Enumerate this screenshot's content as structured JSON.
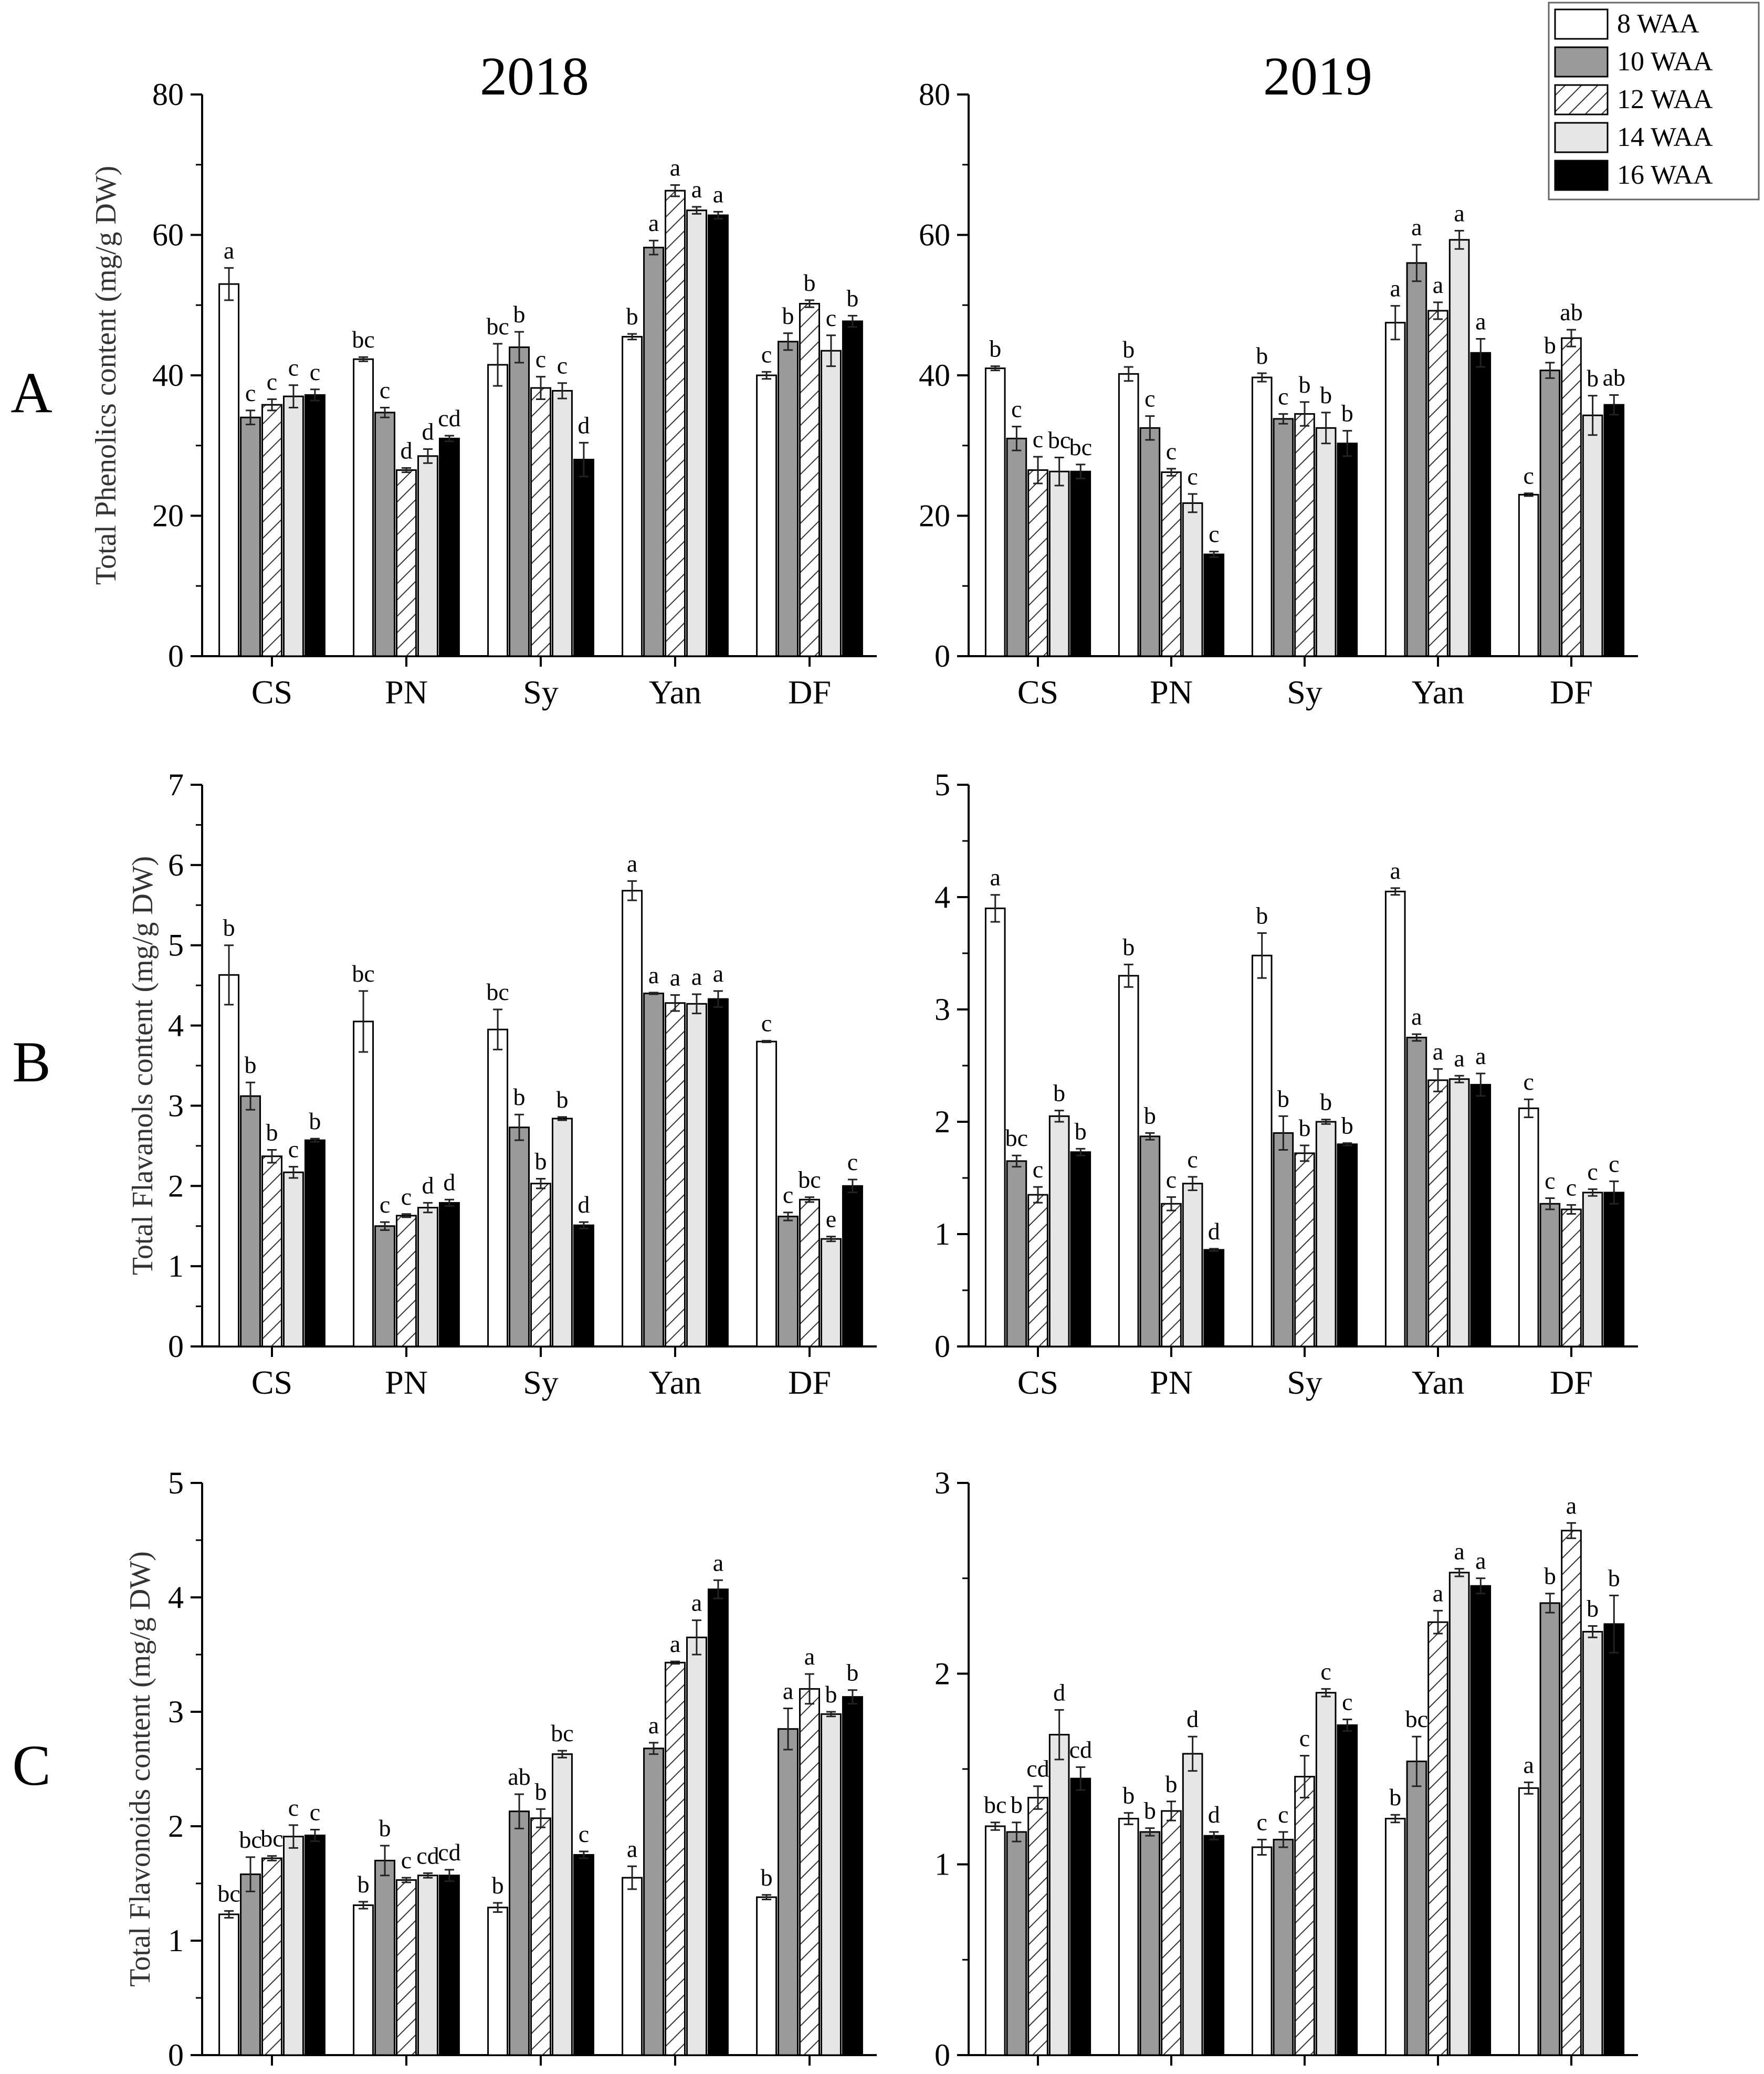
{
  "figure": {
    "year_titles": [
      "2018",
      "2019"
    ],
    "panel_letters": [
      "A",
      "B",
      "C"
    ],
    "legend": [
      {
        "label": "8 WAA",
        "pattern": "white"
      },
      {
        "label": "10 WAA",
        "pattern": "darkgray"
      },
      {
        "label": "12 WAA",
        "pattern": "hatch"
      },
      {
        "label": "14 WAA",
        "pattern": "lightgray"
      },
      {
        "label": "16 WAA",
        "pattern": "black"
      }
    ],
    "colors": {
      "white": "#ffffff",
      "darkgray": "#9a9a9a",
      "lightgray": "#e6e6e6",
      "black": "#000000",
      "hatch_stroke": "#333333"
    }
  },
  "chart_data": [
    {
      "type": "bar",
      "panel": "A",
      "year": "2018",
      "ylabel": "Total Phenolics content (mg/g DW)",
      "ylim": [
        0,
        80
      ],
      "yticks": [
        0,
        20,
        40,
        60,
        80
      ],
      "categories": [
        "CS",
        "PN",
        "Sy",
        "Yan",
        "DF"
      ],
      "series": [
        {
          "name": "8 WAA",
          "values": [
            53.0,
            42.3,
            41.5,
            45.5,
            40.0
          ],
          "errors": [
            2.3,
            0.3,
            3.0,
            0.4,
            0.5
          ],
          "letters": [
            "a",
            "bc",
            "bc",
            "b",
            "c"
          ]
        },
        {
          "name": "10 WAA",
          "values": [
            34.0,
            34.7,
            44.0,
            58.2,
            44.8
          ],
          "errors": [
            1.0,
            0.7,
            2.2,
            1.0,
            1.2
          ],
          "letters": [
            "c",
            "c",
            "b",
            "a",
            "b"
          ]
        },
        {
          "name": "12 WAA",
          "values": [
            35.8,
            26.5,
            38.2,
            66.3,
            50.2
          ],
          "errors": [
            0.8,
            0.3,
            1.6,
            0.8,
            0.5
          ],
          "letters": [
            "c",
            "d",
            "c",
            "a",
            "b"
          ]
        },
        {
          "name": "14 WAA",
          "values": [
            37.0,
            28.5,
            37.8,
            63.5,
            43.5
          ],
          "errors": [
            1.6,
            1.0,
            1.1,
            0.5,
            2.2
          ],
          "letters": [
            "c",
            "d",
            "c",
            "a",
            "c"
          ]
        },
        {
          "name": "16 WAA",
          "values": [
            37.2,
            31.0,
            28.0,
            62.8,
            47.7
          ],
          "errors": [
            0.8,
            0.4,
            2.4,
            0.5,
            0.8
          ],
          "letters": [
            "c",
            "cd",
            "d",
            "a",
            "b"
          ]
        }
      ]
    },
    {
      "type": "bar",
      "panel": "A",
      "year": "2019",
      "ylabel": "",
      "ylim": [
        0,
        80
      ],
      "yticks": [
        0,
        20,
        40,
        60,
        80
      ],
      "categories": [
        "CS",
        "PN",
        "Sy",
        "Yan",
        "DF"
      ],
      "series": [
        {
          "name": "8 WAA",
          "values": [
            41.0,
            40.2,
            39.7,
            47.5,
            23.0
          ],
          "errors": [
            0.3,
            1.0,
            0.6,
            2.4,
            0.2
          ],
          "letters": [
            "b",
            "b",
            "b",
            "a",
            "c"
          ]
        },
        {
          "name": "10 WAA",
          "values": [
            31.0,
            32.5,
            33.8,
            56.0,
            40.7
          ],
          "errors": [
            1.7,
            1.7,
            0.7,
            2.6,
            1.1
          ],
          "letters": [
            "c",
            "c",
            "c",
            "a",
            "b"
          ]
        },
        {
          "name": "12 WAA",
          "values": [
            26.5,
            26.2,
            34.5,
            49.2,
            45.3
          ],
          "errors": [
            1.9,
            0.5,
            1.7,
            1.2,
            1.2
          ],
          "letters": [
            "c",
            "c",
            "b",
            "a",
            "ab"
          ]
        },
        {
          "name": "14 WAA",
          "values": [
            26.3,
            21.8,
            32.5,
            59.3,
            34.3
          ],
          "errors": [
            2.0,
            1.3,
            2.2,
            1.3,
            2.8
          ],
          "letters": [
            "bc",
            "c",
            "b",
            "a",
            "b"
          ]
        },
        {
          "name": "16 WAA",
          "values": [
            26.3,
            14.5,
            30.3,
            43.2,
            35.8
          ],
          "errors": [
            1.0,
            0.4,
            1.8,
            2.0,
            1.4
          ],
          "letters": [
            "bc",
            "c",
            "b",
            "a",
            "ab"
          ]
        }
      ]
    },
    {
      "type": "bar",
      "panel": "B",
      "year": "2018",
      "ylabel": "Total Flavanols content (mg/g DW)",
      "ylim": [
        0,
        7
      ],
      "yticks": [
        0,
        1,
        2,
        3,
        4,
        5,
        6,
        7
      ],
      "categories": [
        "CS",
        "PN",
        "Sy",
        "Yan",
        "DF"
      ],
      "series": [
        {
          "name": "8 WAA",
          "values": [
            4.63,
            4.05,
            3.95,
            5.68,
            3.8
          ],
          "errors": [
            0.37,
            0.38,
            0.25,
            0.12,
            0.01
          ],
          "letters": [
            "b",
            "bc",
            "bc",
            "a",
            "c"
          ]
        },
        {
          "name": "10 WAA",
          "values": [
            3.12,
            1.5,
            2.73,
            4.4,
            1.62
          ],
          "errors": [
            0.17,
            0.05,
            0.16,
            0.01,
            0.05
          ],
          "letters": [
            "b",
            "c",
            "b",
            "a",
            "c"
          ]
        },
        {
          "name": "12 WAA",
          "values": [
            2.37,
            1.63,
            2.03,
            4.28,
            1.83
          ],
          "errors": [
            0.08,
            0.02,
            0.06,
            0.1,
            0.03
          ],
          "letters": [
            "b",
            "c",
            "b",
            "a",
            "bc"
          ]
        },
        {
          "name": "14 WAA",
          "values": [
            2.17,
            1.73,
            2.84,
            4.27,
            1.34
          ],
          "errors": [
            0.07,
            0.06,
            0.02,
            0.12,
            0.03
          ],
          "letters": [
            "c",
            "d",
            "b",
            "a",
            "e"
          ]
        },
        {
          "name": "16 WAA",
          "values": [
            2.57,
            1.79,
            1.51,
            4.33,
            2.0
          ],
          "errors": [
            0.02,
            0.04,
            0.04,
            0.1,
            0.08
          ],
          "letters": [
            "b",
            "d",
            "d",
            "a",
            "c"
          ]
        }
      ]
    },
    {
      "type": "bar",
      "panel": "B",
      "year": "2019",
      "ylabel": "",
      "ylim": [
        0,
        5
      ],
      "yticks": [
        0,
        1,
        2,
        3,
        4,
        5
      ],
      "categories": [
        "CS",
        "PN",
        "Sy",
        "Yan",
        "DF"
      ],
      "series": [
        {
          "name": "8 WAA",
          "values": [
            3.9,
            3.3,
            3.48,
            4.05,
            2.12
          ],
          "errors": [
            0.12,
            0.1,
            0.2,
            0.03,
            0.08
          ],
          "letters": [
            "a",
            "b",
            "b",
            "a",
            "c"
          ]
        },
        {
          "name": "10 WAA",
          "values": [
            1.65,
            1.87,
            1.9,
            2.75,
            1.27
          ],
          "errors": [
            0.05,
            0.03,
            0.15,
            0.03,
            0.05
          ],
          "letters": [
            "bc",
            "b",
            "b",
            "a",
            "c"
          ]
        },
        {
          "name": "12 WAA",
          "values": [
            1.35,
            1.27,
            1.72,
            2.37,
            1.22
          ],
          "errors": [
            0.07,
            0.06,
            0.07,
            0.1,
            0.04
          ],
          "letters": [
            "c",
            "c",
            "b",
            "a",
            "c"
          ]
        },
        {
          "name": "14 WAA",
          "values": [
            2.05,
            1.45,
            2.0,
            2.38,
            1.37
          ],
          "errors": [
            0.05,
            0.06,
            0.02,
            0.03,
            0.03
          ],
          "letters": [
            "b",
            "c",
            "b",
            "a",
            "c"
          ]
        },
        {
          "name": "16 WAA",
          "values": [
            1.73,
            0.86,
            1.8,
            2.33,
            1.37
          ],
          "errors": [
            0.03,
            0.01,
            0.01,
            0.1,
            0.1
          ],
          "letters": [
            "b",
            "d",
            "b",
            "a",
            "c"
          ]
        }
      ]
    },
    {
      "type": "bar",
      "panel": "C",
      "year": "2018",
      "ylabel": "Total Flavonoids content (mg/g DW)",
      "ylim": [
        0,
        5
      ],
      "yticks": [
        0,
        1,
        2,
        3,
        4,
        5
      ],
      "categories": [
        "CS",
        "PN",
        "Sy",
        "Yan",
        "DF"
      ],
      "series": [
        {
          "name": "8 WAA",
          "values": [
            1.23,
            1.31,
            1.29,
            1.55,
            1.38
          ],
          "errors": [
            0.03,
            0.03,
            0.04,
            0.1,
            0.02
          ],
          "letters": [
            "bc",
            "b",
            "b",
            "a",
            "b"
          ]
        },
        {
          "name": "10 WAA",
          "values": [
            1.58,
            1.7,
            2.13,
            2.68,
            2.85
          ],
          "errors": [
            0.15,
            0.13,
            0.15,
            0.05,
            0.18
          ],
          "letters": [
            "bc",
            "b",
            "ab",
            "a",
            "a"
          ]
        },
        {
          "name": "12 WAA",
          "values": [
            1.72,
            1.53,
            2.07,
            3.43,
            3.2
          ],
          "errors": [
            0.02,
            0.02,
            0.08,
            0.01,
            0.13
          ],
          "letters": [
            "bc",
            "c",
            "b",
            "a",
            "a"
          ]
        },
        {
          "name": "14 WAA",
          "values": [
            1.91,
            1.57,
            2.63,
            3.65,
            2.98
          ],
          "errors": [
            0.1,
            0.02,
            0.03,
            0.15,
            0.02
          ],
          "letters": [
            "c",
            "cd",
            "bc",
            "a",
            "b"
          ]
        },
        {
          "name": "16 WAA",
          "values": [
            1.92,
            1.57,
            1.75,
            4.07,
            3.13
          ],
          "errors": [
            0.05,
            0.05,
            0.03,
            0.08,
            0.06
          ],
          "letters": [
            "c",
            "cd",
            "c",
            "a",
            "b"
          ]
        }
      ]
    },
    {
      "type": "bar",
      "panel": "C",
      "year": "2019",
      "ylabel": "",
      "ylim": [
        0,
        3
      ],
      "yticks": [
        0,
        1,
        2,
        3
      ],
      "categories": [
        "CS",
        "PN",
        "Sy",
        "Yan",
        "DF"
      ],
      "series": [
        {
          "name": "8 WAA",
          "values": [
            1.2,
            1.24,
            1.09,
            1.24,
            1.4
          ],
          "errors": [
            0.02,
            0.03,
            0.04,
            0.02,
            0.03
          ],
          "letters": [
            "bc",
            "b",
            "c",
            "b",
            "a"
          ]
        },
        {
          "name": "10 WAA",
          "values": [
            1.17,
            1.17,
            1.13,
            1.54,
            2.37
          ],
          "errors": [
            0.05,
            0.02,
            0.04,
            0.13,
            0.05
          ],
          "letters": [
            "b",
            "b",
            "c",
            "bc",
            "b"
          ]
        },
        {
          "name": "12 WAA",
          "values": [
            1.35,
            1.28,
            1.46,
            2.27,
            2.75
          ],
          "errors": [
            0.06,
            0.05,
            0.11,
            0.06,
            0.04
          ],
          "letters": [
            "cd",
            "b",
            "c",
            "a",
            "a"
          ]
        },
        {
          "name": "14 WAA",
          "values": [
            1.68,
            1.58,
            1.9,
            2.53,
            2.22
          ],
          "errors": [
            0.13,
            0.09,
            0.02,
            0.02,
            0.03
          ],
          "letters": [
            "d",
            "d",
            "c",
            "a",
            "b"
          ]
        },
        {
          "name": "16 WAA",
          "values": [
            1.45,
            1.15,
            1.73,
            2.46,
            2.26
          ],
          "errors": [
            0.06,
            0.02,
            0.03,
            0.04,
            0.15
          ],
          "letters": [
            "cd",
            "d",
            "c",
            "a",
            "b"
          ]
        }
      ]
    }
  ]
}
